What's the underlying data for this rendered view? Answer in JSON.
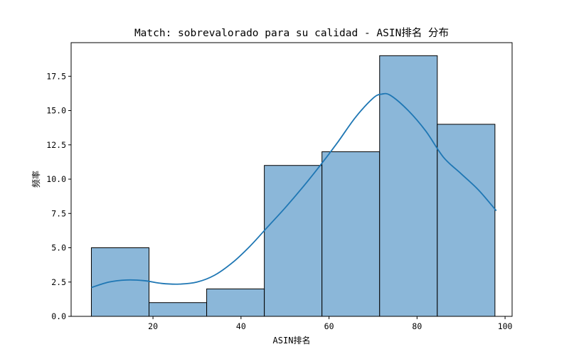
{
  "chart_data": {
    "type": "bar",
    "title": "Match: sobrevalorado para su calidad - ASIN排名 分布",
    "xlabel": "ASIN排名",
    "ylabel": "频率",
    "xlim": [
      1.4,
      101.6
    ],
    "ylim": [
      0,
      19.95
    ],
    "xticks": [
      20,
      40,
      60,
      80,
      100
    ],
    "xtick_labels": [
      "20",
      "40",
      "60",
      "80",
      "100"
    ],
    "yticks": [
      0,
      2.5,
      5,
      7.5,
      10,
      12.5,
      15,
      17.5
    ],
    "ytick_labels": [
      "0.0",
      "2.5",
      "5.0",
      "7.5",
      "10.0",
      "12.5",
      "15.0",
      "17.5"
    ],
    "bin_edges": [
      6,
      19.1,
      32.2,
      45.3,
      58.4,
      71.5,
      84.6,
      97.7
    ],
    "counts": [
      5,
      1,
      2,
      11,
      12,
      19,
      14
    ],
    "kde": {
      "x": [
        6,
        10,
        14,
        18,
        22,
        26,
        30,
        34,
        38,
        42,
        46,
        50,
        54,
        58,
        62,
        66,
        70,
        72,
        74,
        78,
        82,
        86,
        90,
        94,
        98
      ],
      "y": [
        2.1,
        2.5,
        2.65,
        2.6,
        2.4,
        2.35,
        2.5,
        3.0,
        3.9,
        5.1,
        6.5,
        7.9,
        9.4,
        11.0,
        12.7,
        14.5,
        15.9,
        16.2,
        16.1,
        15.0,
        13.5,
        11.6,
        10.4,
        9.2,
        7.7
      ]
    },
    "grid": false,
    "legend": "none",
    "colors": {
      "bar_fill": "#8bb7d9",
      "bar_edge": "#000000",
      "kde_line": "#1f77b4",
      "axis": "#000000"
    }
  }
}
